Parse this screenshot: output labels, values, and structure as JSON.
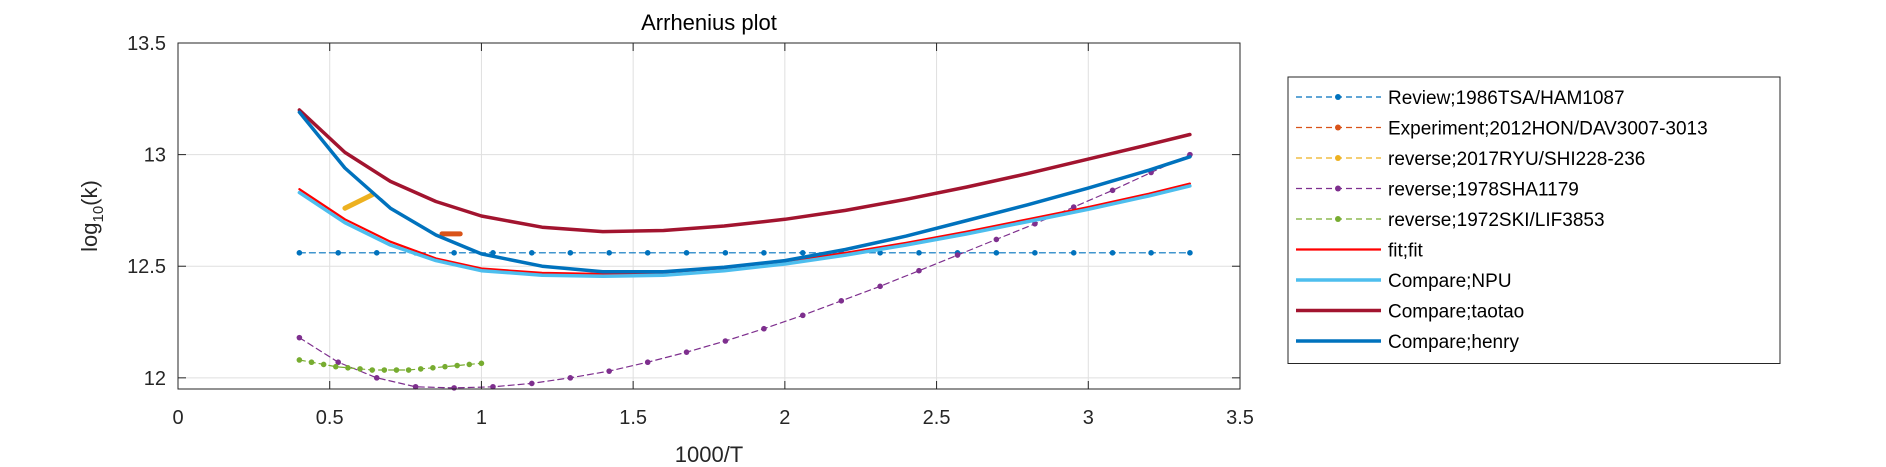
{
  "chart_data": {
    "type": "line",
    "title": "Arrhenius plot",
    "xlabel": "1000/T",
    "ylabel_base": "log",
    "ylabel_sub": "10",
    "ylabel_rest": "(k)",
    "xlim": [
      0,
      3.5
    ],
    "ylim": [
      11.95,
      13.5
    ],
    "xticks": [
      0,
      0.5,
      1,
      1.5,
      2,
      2.5,
      3,
      3.5
    ],
    "xtick_labels": [
      "0",
      "0.5",
      "1",
      "1.5",
      "2",
      "2.5",
      "3",
      "3.5"
    ],
    "yticks": [
      12,
      12.5,
      13,
      13.5
    ],
    "ytick_labels": [
      "12",
      "12.5",
      "13",
      "13.5"
    ],
    "grid": true,
    "legend_position": "outside-right",
    "series": [
      {
        "name": "Review;1986TSA/HAM1087",
        "color": "#0072BD",
        "style": "dashed-markers",
        "x": [
          0.4,
          0.528,
          0.655,
          0.783,
          0.91,
          1.038,
          1.166,
          1.293,
          1.421,
          1.548,
          1.676,
          1.804,
          1.931,
          2.059,
          2.186,
          2.314,
          2.442,
          2.569,
          2.697,
          2.824,
          2.952,
          3.08,
          3.207,
          3.335
        ],
        "y": [
          12.56,
          12.56,
          12.56,
          12.56,
          12.56,
          12.56,
          12.56,
          12.56,
          12.56,
          12.56,
          12.56,
          12.56,
          12.56,
          12.56,
          12.56,
          12.56,
          12.56,
          12.56,
          12.56,
          12.56,
          12.56,
          12.56,
          12.56,
          12.56
        ]
      },
      {
        "name": "Experiment;2012HON/DAV3007-3013",
        "color": "#D95319",
        "style": "dashed-markers",
        "x": [
          0.87,
          0.89,
          0.91,
          0.93
        ],
        "y": [
          12.645,
          12.645,
          12.645,
          12.645
        ]
      },
      {
        "name": "reverse;2017RYU/SHI228-236",
        "color": "#EDB120",
        "style": "dashed-markers",
        "x": [
          0.55,
          0.58,
          0.61,
          0.64
        ],
        "y": [
          12.76,
          12.78,
          12.8,
          12.82
        ]
      },
      {
        "name": "reverse;1978SHA1179",
        "color": "#7E2F8E",
        "style": "dashed-markers",
        "x": [
          0.4,
          0.528,
          0.655,
          0.783,
          0.91,
          1.038,
          1.166,
          1.293,
          1.421,
          1.548,
          1.676,
          1.804,
          1.931,
          2.059,
          2.186,
          2.314,
          2.442,
          2.569,
          2.697,
          2.824,
          2.952,
          3.08,
          3.207,
          3.335
        ],
        "y": [
          12.18,
          12.07,
          12.0,
          11.96,
          11.955,
          11.96,
          11.975,
          12.0,
          12.03,
          12.07,
          12.115,
          12.165,
          12.22,
          12.28,
          12.345,
          12.41,
          12.48,
          12.55,
          12.62,
          12.69,
          12.765,
          12.84,
          12.92,
          13.0
        ]
      },
      {
        "name": "reverse;1972SKI/LIF3853",
        "color": "#77AC30",
        "style": "dashed-markers",
        "x": [
          0.4,
          0.44,
          0.48,
          0.52,
          0.56,
          0.6,
          0.64,
          0.68,
          0.72,
          0.76,
          0.8,
          0.84,
          0.88,
          0.92,
          0.96,
          1.0
        ],
        "y": [
          12.08,
          12.07,
          12.06,
          12.05,
          12.045,
          12.04,
          12.035,
          12.035,
          12.035,
          12.035,
          12.04,
          12.045,
          12.05,
          12.055,
          12.06,
          12.065
        ]
      },
      {
        "name": "fit;fit",
        "color": "#FF0000",
        "style": "solid",
        "x": [
          0.4,
          0.55,
          0.7,
          0.85,
          1.0,
          1.2,
          1.4,
          1.6,
          1.8,
          2.0,
          2.2,
          2.4,
          2.6,
          2.8,
          3.0,
          3.2,
          3.335
        ],
        "y": [
          12.845,
          12.71,
          12.61,
          12.535,
          12.49,
          12.47,
          12.465,
          12.47,
          12.49,
          12.52,
          12.56,
          12.605,
          12.655,
          12.71,
          12.765,
          12.825,
          12.87
        ]
      },
      {
        "name": "Compare;NPU",
        "color": "#4DBEEE",
        "style": "solid-thick",
        "x": [
          0.4,
          0.55,
          0.7,
          0.85,
          1.0,
          1.2,
          1.4,
          1.6,
          1.8,
          2.0,
          2.2,
          2.4,
          2.6,
          2.8,
          3.0,
          3.2,
          3.335
        ],
        "y": [
          12.83,
          12.695,
          12.595,
          12.525,
          12.48,
          12.46,
          12.455,
          12.46,
          12.48,
          12.51,
          12.55,
          12.595,
          12.645,
          12.7,
          12.755,
          12.815,
          12.86
        ]
      },
      {
        "name": "Compare;taotao",
        "color": "#A2142F",
        "style": "solid-thick",
        "x": [
          0.4,
          0.55,
          0.7,
          0.85,
          1.0,
          1.2,
          1.4,
          1.6,
          1.8,
          2.0,
          2.2,
          2.4,
          2.6,
          2.8,
          3.0,
          3.2,
          3.335
        ],
        "y": [
          13.2,
          13.01,
          12.88,
          12.79,
          12.725,
          12.675,
          12.655,
          12.66,
          12.68,
          12.71,
          12.75,
          12.8,
          12.855,
          12.915,
          12.98,
          13.045,
          13.09
        ]
      },
      {
        "name": "Compare;henry",
        "color": "#0072BD",
        "style": "solid-thick",
        "x": [
          0.4,
          0.55,
          0.7,
          0.85,
          1.0,
          1.2,
          1.4,
          1.6,
          1.8,
          2.0,
          2.2,
          2.4,
          2.6,
          2.8,
          3.0,
          3.2,
          3.335
        ],
        "y": [
          13.19,
          12.94,
          12.76,
          12.64,
          12.555,
          12.5,
          12.475,
          12.475,
          12.495,
          12.525,
          12.575,
          12.635,
          12.705,
          12.775,
          12.85,
          12.93,
          12.99
        ]
      }
    ]
  }
}
